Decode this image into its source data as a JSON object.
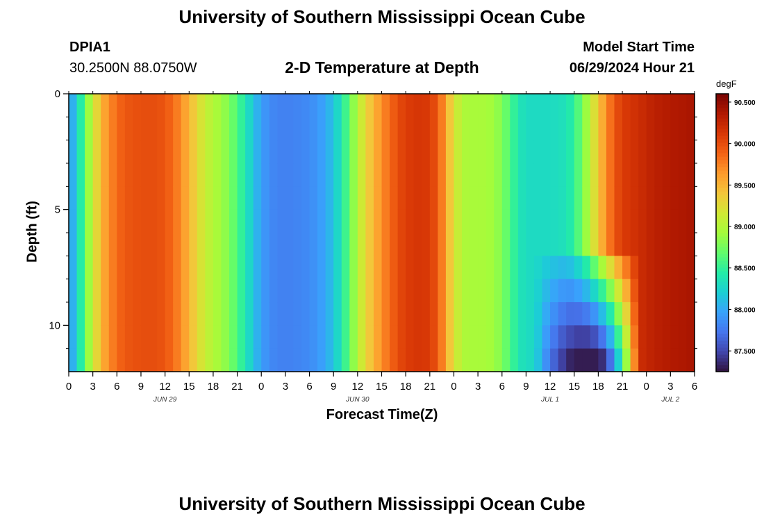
{
  "header": {
    "title": "University of Southern Mississippi Ocean Cube",
    "station": "DPIA1",
    "location": "30.2500N  88.0750W",
    "subtitle": "2-D Temperature at Depth",
    "start_label": "Model Start Time",
    "start_value": "06/29/2024 Hour 21"
  },
  "footer": {
    "title": "University of Southern Mississippi Ocean Cube"
  },
  "chart_data": {
    "type": "heatmap",
    "title": "2-D Temperature at Depth",
    "xlabel": "Forecast Time(Z)",
    "ylabel": "Depth (ft)",
    "x_tick_labels": [
      "0",
      "3",
      "6",
      "9",
      "12",
      "15",
      "18",
      "21",
      "0",
      "3",
      "6",
      "9",
      "12",
      "15",
      "18",
      "21",
      "0",
      "3",
      "6",
      "9",
      "12",
      "15",
      "18",
      "21",
      "0",
      "3",
      "6"
    ],
    "x_range_hours": [
      0,
      78
    ],
    "day_labels": [
      {
        "label": "JUN 29",
        "hour": 12
      },
      {
        "label": "JUN 30",
        "hour": 36
      },
      {
        "label": "JUL 1",
        "hour": 60
      },
      {
        "label": "JUL 2",
        "hour": 75
      }
    ],
    "y_ticks": [
      0,
      5,
      10
    ],
    "y_tick_labels": [
      "0",
      "5",
      "10"
    ],
    "y_range_ft": [
      0,
      12
    ],
    "y_inverted": true,
    "colorbar": {
      "unit": "degF",
      "range": [
        87.25,
        90.6
      ],
      "ticks": [
        87.5,
        88.0,
        88.5,
        89.0,
        89.5,
        90.0,
        90.5
      ],
      "tick_labels": [
        "87.500",
        "88.000",
        "88.500",
        "89.000",
        "89.500",
        "90.000",
        "90.500"
      ],
      "colormap": [
        "#30123b",
        "#4145ab",
        "#4675ed",
        "#39a2fc",
        "#1bcfd4",
        "#24eca6",
        "#61fc6c",
        "#a4fc3b",
        "#d1e834",
        "#f3c63a",
        "#fe9b2d",
        "#f36315",
        "#d93806",
        "#b11901",
        "#7a0402"
      ]
    },
    "surface_temperature_by_hour": [
      [
        0,
        87.9
      ],
      [
        1,
        88.2
      ],
      [
        2,
        88.7
      ],
      [
        3,
        89.1
      ],
      [
        4,
        89.5
      ],
      [
        5,
        89.7
      ],
      [
        6,
        89.85
      ],
      [
        7,
        89.95
      ],
      [
        9,
        90.0
      ],
      [
        11,
        90.0
      ],
      [
        12,
        89.95
      ],
      [
        13,
        89.85
      ],
      [
        14,
        89.7
      ],
      [
        15,
        89.5
      ],
      [
        16,
        89.3
      ],
      [
        17,
        89.1
      ],
      [
        18,
        89.0
      ],
      [
        19,
        88.9
      ],
      [
        20,
        88.8
      ],
      [
        21,
        88.6
      ],
      [
        22,
        88.4
      ],
      [
        23,
        88.15
      ],
      [
        24,
        87.95
      ],
      [
        25,
        87.85
      ],
      [
        26,
        87.8
      ],
      [
        28,
        87.8
      ],
      [
        30,
        87.85
      ],
      [
        31,
        87.9
      ],
      [
        32,
        88.0
      ],
      [
        33,
        88.15
      ],
      [
        34,
        88.4
      ],
      [
        35,
        88.7
      ],
      [
        36,
        89.0
      ],
      [
        37,
        89.3
      ],
      [
        38,
        89.5
      ],
      [
        39,
        89.7
      ],
      [
        40,
        89.85
      ],
      [
        41,
        90.0
      ],
      [
        42,
        90.1
      ],
      [
        44,
        90.15
      ],
      [
        45,
        90.1
      ],
      [
        46,
        89.95
      ],
      [
        47,
        89.6
      ],
      [
        48,
        89.2
      ],
      [
        49,
        89.0
      ],
      [
        50,
        88.95
      ],
      [
        52,
        88.95
      ],
      [
        53,
        88.9
      ],
      [
        54,
        88.8
      ],
      [
        55,
        88.6
      ],
      [
        56,
        88.4
      ],
      [
        57,
        88.3
      ],
      [
        60,
        88.3
      ],
      [
        62,
        88.35
      ],
      [
        63,
        88.5
      ],
      [
        64,
        88.75
      ],
      [
        65,
        89.05
      ],
      [
        66,
        89.4
      ],
      [
        67,
        89.7
      ],
      [
        68,
        89.95
      ],
      [
        69,
        90.1
      ],
      [
        71,
        90.2
      ],
      [
        73,
        90.3
      ],
      [
        75,
        90.35
      ],
      [
        78,
        90.4
      ]
    ],
    "deep_cool_anomaly": {
      "hours": [
        58,
        71
      ],
      "depth_ft": [
        6.5,
        12
      ],
      "center_hour": 64.5,
      "min_temperature": 87.3
    },
    "grid": false
  }
}
